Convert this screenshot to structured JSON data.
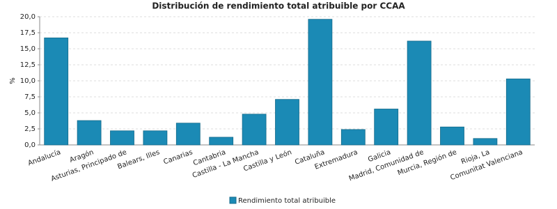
{
  "chart_data": {
    "type": "bar",
    "title": "Distribución de rendimiento total atribuible por CCAA",
    "y_label": "%",
    "categories": [
      "Andalucía",
      "Aragón",
      "Asturias, Principado de",
      "Balears, Illes",
      "Canarias",
      "Cantabria",
      "Castilla - La Mancha",
      "Castilla y León",
      "Cataluña",
      "Extremadura",
      "Galicia",
      "Madrid, Comunidad de",
      "Murcia, Región de",
      "Rioja, La",
      "Comunitat Valenciana"
    ],
    "series": [
      {
        "name": "Rendimiento total atribuible",
        "color": "#1b8ab5",
        "values": [
          16.7,
          3.8,
          2.2,
          2.2,
          3.4,
          1.2,
          4.8,
          7.1,
          19.6,
          2.4,
          5.6,
          16.2,
          2.8,
          1.0,
          10.3
        ]
      }
    ],
    "ylim": [
      0,
      20
    ],
    "yticks": [
      {
        "value": 0,
        "label": "0,0"
      },
      {
        "value": 2.5,
        "label": "2,5"
      },
      {
        "value": 5,
        "label": "5,0"
      },
      {
        "value": 7.5,
        "label": "7,5"
      },
      {
        "value": 10,
        "label": "10,0"
      },
      {
        "value": 12.5,
        "label": "12,5"
      },
      {
        "value": 15,
        "label": "15,0"
      },
      {
        "value": 17.5,
        "label": "17,5"
      },
      {
        "value": 20,
        "label": "20,0"
      }
    ],
    "grid": true
  }
}
